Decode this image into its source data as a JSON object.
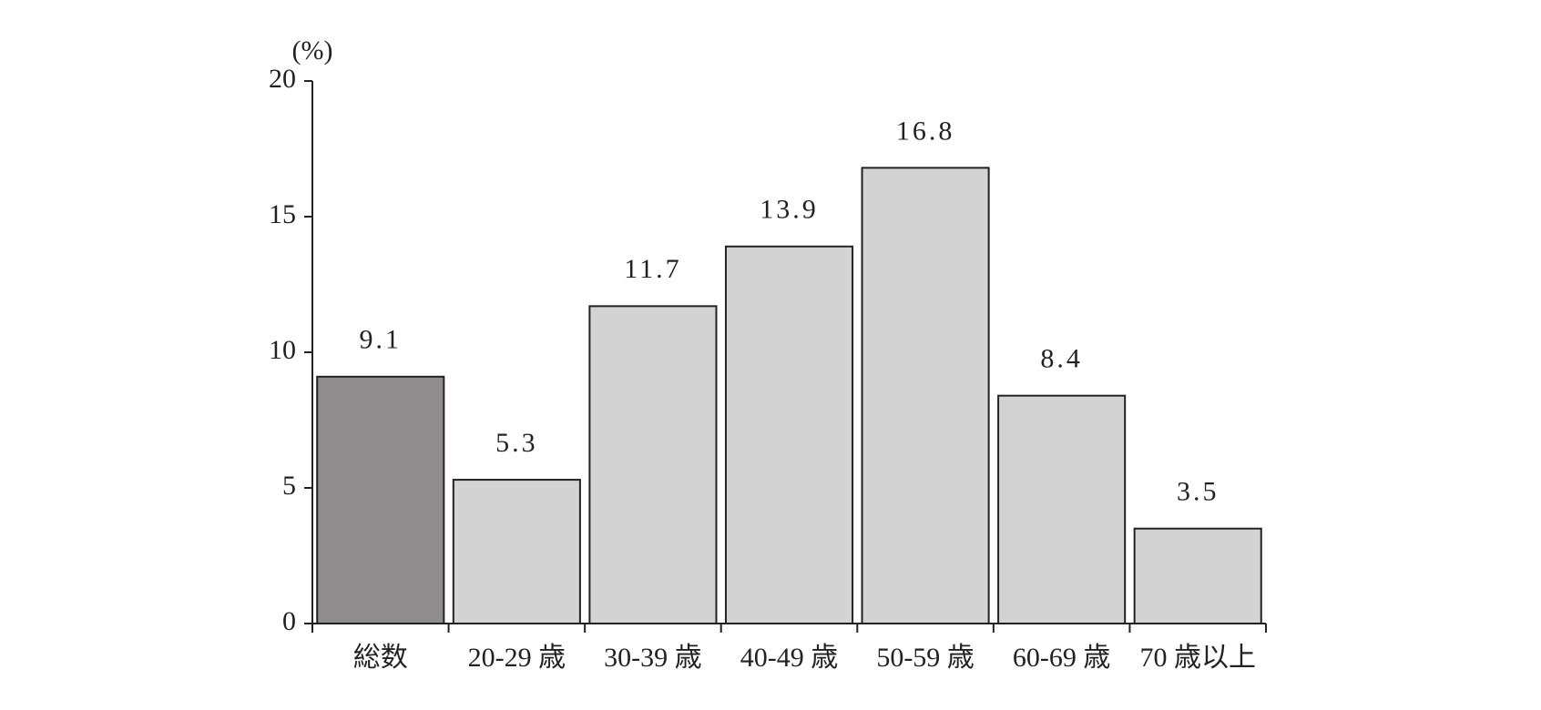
{
  "chart_data": {
    "type": "bar",
    "y_label": "(%)",
    "categories": [
      "総数",
      "20-29 歳",
      "30-39 歳",
      "40-49 歳",
      "50-59 歳",
      "60-69 歳",
      "70 歳以上"
    ],
    "values": [
      9.1,
      5.3,
      11.7,
      13.9,
      16.8,
      8.4,
      3.5
    ],
    "colors": [
      "#8f8d8e",
      "#d3d3d3",
      "#d3d3d3",
      "#d3d3d3",
      "#d3d3d3",
      "#d3d3d3",
      "#d3d3d3"
    ],
    "ylim": [
      0,
      20
    ],
    "yticks": [
      0,
      5,
      10,
      15,
      20
    ],
    "grid": false
  }
}
